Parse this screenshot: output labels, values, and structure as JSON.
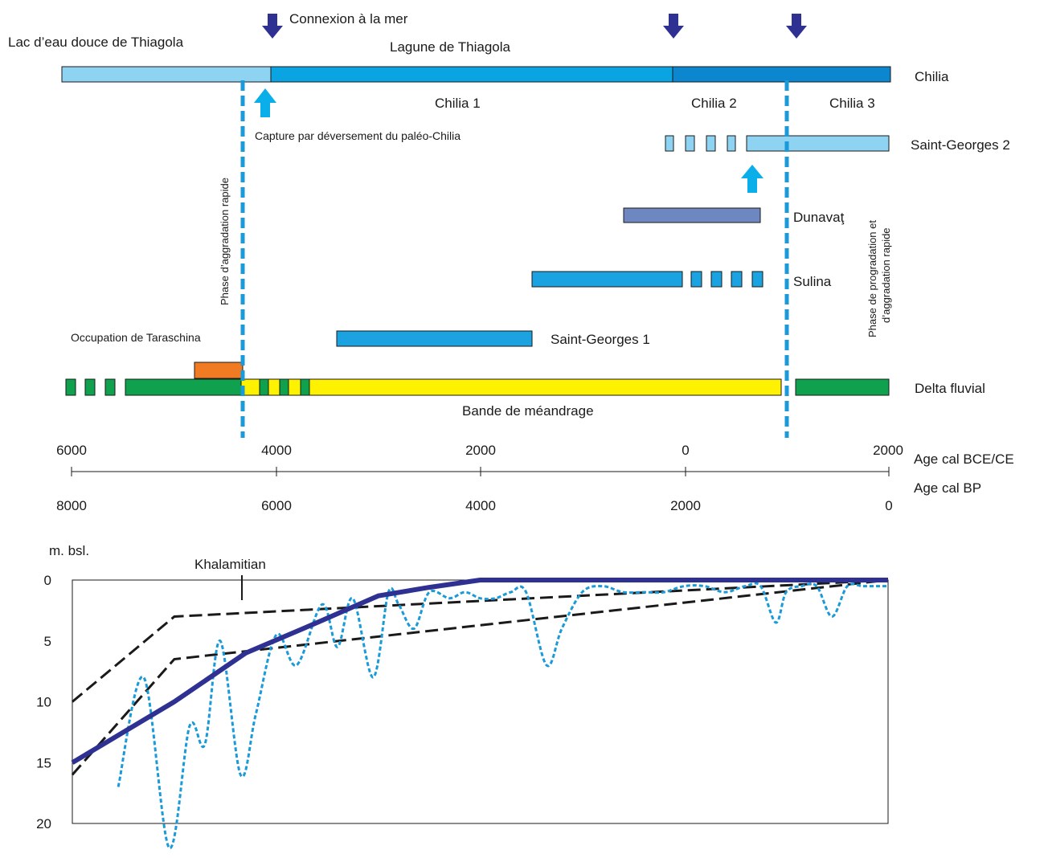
{
  "colors": {
    "thiagola_lake": "#8fd3f3",
    "chilia_blue": "#0aa4e2",
    "chilia_dark": "#0b86cf",
    "sg2_light": "#8fd3f3",
    "dunavat": "#6f87c1",
    "sulina": "#1aa3e0",
    "sg1": "#1aa3e0",
    "green": "#0fa14e",
    "yellow": "#fff200",
    "orange": "#f07b22",
    "arrow_down": "#2e3192",
    "arrow_up": "#0aaee8",
    "dashed_line": "#1a9ad8",
    "sea_level_thick": "#2e3192",
    "sea_level_dotted": "#1a9ad8",
    "black": "#1a1a1a"
  },
  "labels": {
    "connexion": "Connexion à la mer",
    "lac": "Lac d’eau douce de Thiagola",
    "lagune": "Lagune de Thiagola",
    "chilia": "Chilia",
    "chilia1": "Chilia 1",
    "chilia2": "Chilia 2",
    "chilia3": "Chilia 3",
    "capture": "Capture par déversement du paléo-Chilia",
    "saint_georges2": "Saint-Georges 2",
    "dunavat": "Dunavaţ",
    "sulina": "Sulina",
    "saint_georges1": "Saint-Georges 1",
    "occupation": "Occupation de Taraschina",
    "delta_fluvial": "Delta fluvial",
    "meandrage": "Bande de méandrage",
    "phase_aggradation": "Phase d’aggradation rapide",
    "phase_prog_line1": "Phase de progradation et",
    "phase_prog_line2": "d’aggradation rapide",
    "axis_bce": "Age cal BCE/CE",
    "axis_bp": "Age cal BP",
    "ylabel": "m. bsl.",
    "khalamitian": "Khalamitian"
  },
  "bce_ticks": [
    "6000",
    "4000",
    "2000",
    "0",
    "2000"
  ],
  "bp_ticks": [
    "8000",
    "6000",
    "4000",
    "2000",
    "0"
  ],
  "chart_data": {
    "type": "line",
    "x_axis": "Age cal BP",
    "xlim": [
      8000,
      0
    ],
    "ylabel": "m. bsl.",
    "ylim": [
      0,
      20
    ],
    "y_ticks": [
      "0",
      "5",
      "10",
      "15",
      "20"
    ],
    "series": [
      {
        "style": "solid-thick",
        "x": [
          8000,
          7000,
          6300,
          5600,
          5000,
          4500,
          4000,
          3000,
          2000,
          1000,
          0
        ],
        "y": [
          15,
          10,
          6,
          3.5,
          1.3,
          0.6,
          0,
          0,
          0,
          0,
          0
        ]
      },
      {
        "style": "dashed",
        "x": [
          8000,
          7000,
          0
        ],
        "y": [
          10,
          3,
          0
        ]
      },
      {
        "style": "dashed",
        "x": [
          8000,
          7000,
          0
        ],
        "y": [
          16,
          6.5,
          0
        ]
      },
      {
        "style": "dotted",
        "x": [
          7550,
          7300,
          7050,
          6850,
          6700,
          6550,
          6350,
          6200,
          6000,
          5800,
          5550,
          5400,
          5250,
          5050,
          4900,
          4800,
          4650,
          4500,
          4300,
          4150,
          4000,
          3850,
          3700,
          3550,
          3350,
          3200,
          3000,
          2800,
          2600,
          2400,
          2200,
          2000,
          1800,
          1600,
          1400,
          1250,
          1100,
          1000,
          850,
          700,
          550,
          400,
          250,
          100,
          0
        ],
        "y": [
          17,
          8,
          22,
          12,
          13.5,
          5,
          16,
          11,
          4.5,
          7,
          2,
          5.5,
          1.5,
          8,
          1,
          2,
          4,
          1,
          1.5,
          1,
          1.5,
          1.5,
          1,
          1,
          7,
          4,
          1,
          0.5,
          1,
          1,
          1,
          0.5,
          0.5,
          1,
          0.5,
          0.5,
          3.5,
          1,
          0.5,
          0.5,
          3,
          0.5,
          0.5,
          0.5,
          0.5
        ]
      }
    ],
    "annotations": [
      "Khalamitian"
    ]
  }
}
